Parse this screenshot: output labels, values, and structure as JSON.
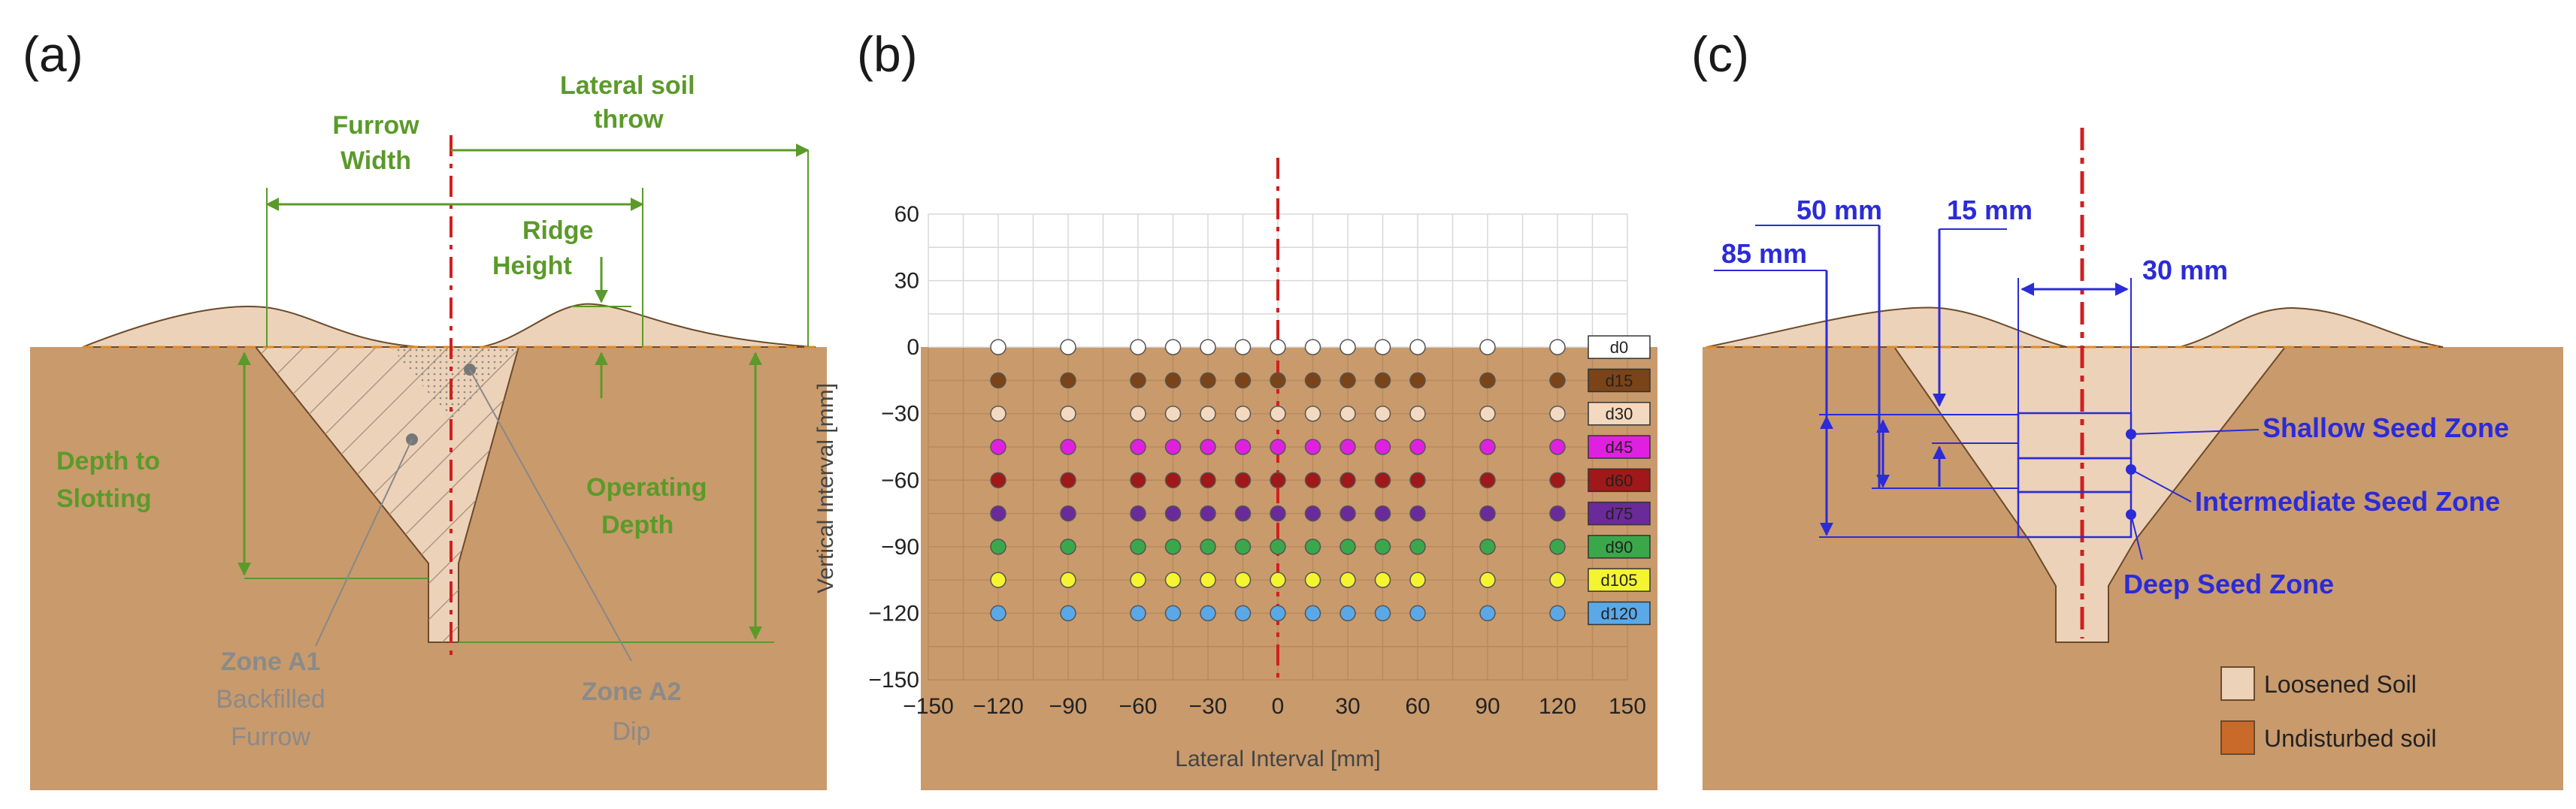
{
  "panels": {
    "a": "(a)",
    "b": "(b)",
    "c": "(c)"
  },
  "panel_a": {
    "lateral_soil_throw": [
      "Lateral soil",
      "throw"
    ],
    "furrow_width": [
      "Furrow",
      "Width"
    ],
    "ridge_height": [
      "Ridge",
      "Height"
    ],
    "depth_to_slotting": [
      "Depth to",
      "Slotting"
    ],
    "operating_depth": [
      "Operating",
      "Depth"
    ],
    "zone_a1": [
      "Zone A1",
      "Backfilled",
      "Furrow"
    ],
    "zone_a2": [
      "Zone A2",
      "Dip"
    ]
  },
  "panel_c": {
    "dim_50": "50 mm",
    "dim_15": "15 mm",
    "dim_85": "85 mm",
    "dim_30": "30 mm",
    "shallow": "Shallow Seed Zone",
    "intermediate": "Intermediate Seed Zone",
    "deep": "Deep Seed Zone",
    "legend_loosened": "Loosened Soil",
    "legend_undisturbed": "Undisturbed soil"
  },
  "colors": {
    "soil": "#c99a6c",
    "loosened": "#ecd2b8",
    "undisturbed": "#c96a2a",
    "annotation_green": "#5b9a2a",
    "annotation_blue": "#2b2bd8",
    "centerline_red": "#d02020"
  },
  "chart_data": {
    "type": "scatter",
    "xlabel": "Lateral Interval [mm]",
    "ylabel": "Vertical Interval [mm]",
    "xlim": [
      -150,
      150
    ],
    "ylim": [
      -150,
      60
    ],
    "xticks": [
      -150,
      -120,
      -90,
      -60,
      -30,
      0,
      30,
      60,
      90,
      120,
      150
    ],
    "yticks": [
      60,
      30,
      0,
      -30,
      -60,
      -90,
      -120,
      -150
    ],
    "grid": true,
    "legend_position": "right",
    "x": [
      -120,
      -90,
      -60,
      -45,
      -30,
      -15,
      0,
      15,
      30,
      45,
      60,
      90,
      120
    ],
    "series": [
      {
        "name": "d0",
        "y": 0,
        "color": "#ffffff"
      },
      {
        "name": "d15",
        "y": -15,
        "color": "#7a4418"
      },
      {
        "name": "d30",
        "y": -30,
        "color": "#f3d9bf"
      },
      {
        "name": "d45",
        "y": -45,
        "color": "#e020e0"
      },
      {
        "name": "d60",
        "y": -60,
        "color": "#a01818"
      },
      {
        "name": "d75",
        "y": -75,
        "color": "#6a2a9a"
      },
      {
        "name": "d90",
        "y": -90,
        "color": "#3aa84a"
      },
      {
        "name": "d105",
        "y": -105,
        "color": "#f4f430"
      },
      {
        "name": "d120",
        "y": -120,
        "color": "#5aa8e8"
      }
    ]
  }
}
